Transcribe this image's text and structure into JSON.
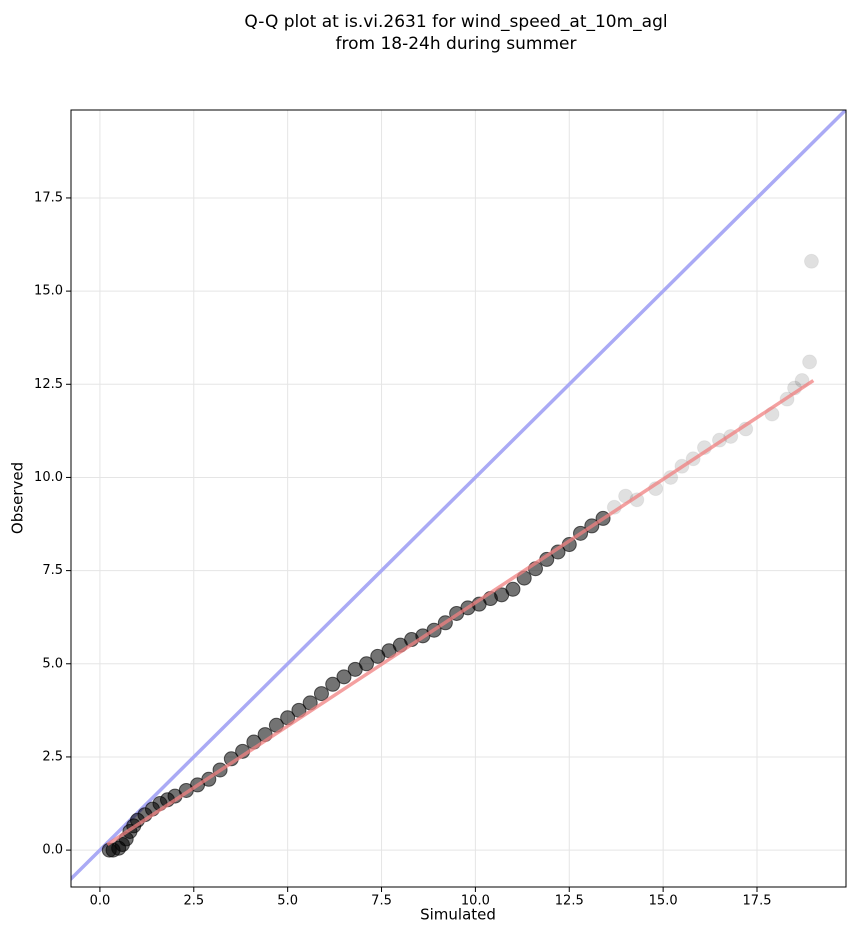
{
  "chart_data": {
    "type": "scatter",
    "title": [
      "Q-Q plot at is.vi.2631 for wind_speed_at_10m_agl",
      "from 18-24h during summer"
    ],
    "x_label": "Simulated",
    "y_label": "Observed",
    "xlim": [
      -0.77,
      19.87
    ],
    "ylim": [
      -0.99,
      19.86
    ],
    "xticks": [
      {
        "value": 0,
        "label": "0.0"
      },
      2.5,
      {
        "value": 5,
        "label": "5.0"
      },
      7.5,
      {
        "value": 10,
        "label": "10.0"
      },
      12.5,
      {
        "value": 15,
        "label": "15.0"
      },
      17.5
    ],
    "yticks": [
      {
        "value": 0,
        "label": "0.0"
      },
      2.5,
      {
        "value": 5,
        "label": "5.0"
      },
      7.5,
      {
        "value": 10,
        "label": "10.0"
      },
      12.5,
      {
        "value": 15,
        "label": "15.0"
      },
      17.5
    ],
    "grid": true,
    "point_color": "#000000",
    "x": [
      0.25,
      0.35,
      0.5,
      0.6,
      0.7,
      0.8,
      0.9,
      1.0,
      1.2,
      1.4,
      1.6,
      1.8,
      2.0,
      2.3,
      2.6,
      2.9,
      3.2,
      3.5,
      3.8,
      4.1,
      4.4,
      4.7,
      5.0,
      5.3,
      5.6,
      5.9,
      6.2,
      6.5,
      6.8,
      7.1,
      7.4,
      7.7,
      8.0,
      8.3,
      8.6,
      8.9,
      9.2,
      9.5,
      9.8,
      10.1,
      10.4,
      10.7,
      11.0,
      11.3,
      11.6,
      11.9,
      12.2,
      12.5,
      12.8,
      13.1,
      13.4,
      13.7,
      14.0,
      14.3,
      14.8,
      15.2,
      15.5,
      15.8,
      16.1,
      16.5,
      16.8,
      17.2,
      17.9,
      18.3,
      18.5,
      18.7,
      18.9,
      18.95
    ],
    "y": [
      0.0,
      0.0,
      0.05,
      0.15,
      0.3,
      0.5,
      0.65,
      0.8,
      0.95,
      1.1,
      1.25,
      1.35,
      1.45,
      1.6,
      1.75,
      1.9,
      2.15,
      2.45,
      2.65,
      2.9,
      3.1,
      3.35,
      3.55,
      3.75,
      3.95,
      4.2,
      4.45,
      4.65,
      4.85,
      5.0,
      5.2,
      5.35,
      5.5,
      5.65,
      5.75,
      5.9,
      6.1,
      6.35,
      6.5,
      6.6,
      6.75,
      6.85,
      7.0,
      7.3,
      7.55,
      7.8,
      8.0,
      8.2,
      8.5,
      8.7,
      8.9,
      9.2,
      9.5,
      9.4,
      9.7,
      10.0,
      10.3,
      10.5,
      10.8,
      11.0,
      11.1,
      11.3,
      11.7,
      12.1,
      12.4,
      12.6,
      13.1,
      15.8
    ],
    "identity_line": {
      "x": [
        -1,
        20
      ],
      "y": [
        -1,
        20
      ],
      "color": "#aaaaf5"
    },
    "fit_line": {
      "x": [
        0.2,
        19
      ],
      "y": [
        0.15,
        12.6
      ],
      "color": "#f08080"
    }
  }
}
